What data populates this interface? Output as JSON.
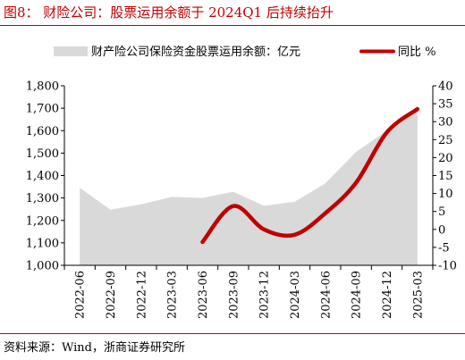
{
  "figure_title": "图8： 财险公司：股票运用余额于 2024Q1 后持续抬升",
  "source": "资料来源：Wind，浙商证券研究所",
  "colors": {
    "accent": "#c00000",
    "area": "#d9d9d9",
    "line": "#c00000"
  },
  "chart_data": {
    "type": "area",
    "categories": [
      "2022-06",
      "2022-09",
      "2022-12",
      "2023-03",
      "2023-06",
      "2023-09",
      "2023-12",
      "2024-03",
      "2024-06",
      "2024-09",
      "2024-12",
      "2025-03"
    ],
    "series": [
      {
        "name": "财产险公司保险资金股票运用余额：亿元",
        "type": "area",
        "axis": "left",
        "values": [
          1345,
          1248,
          1272,
          1305,
          1300,
          1328,
          1265,
          1283,
          1365,
          1505,
          1600,
          1710
        ]
      },
      {
        "name": "同比 %",
        "type": "line",
        "axis": "right",
        "values": [
          null,
          null,
          null,
          null,
          -3.5,
          6.5,
          0,
          -1.5,
          4.5,
          13,
          27,
          33.5
        ]
      }
    ],
    "y_left": {
      "min": 1000,
      "max": 1800,
      "ticks": [
        1000,
        1100,
        1200,
        1300,
        1400,
        1500,
        1600,
        1700,
        1800
      ],
      "tick_labels": [
        "1,000",
        "1,100",
        "1,200",
        "1,300",
        "1,400",
        "1,500",
        "1,600",
        "1,700",
        "1,800"
      ]
    },
    "y_right": {
      "min": -10,
      "max": 40,
      "ticks": [
        -10,
        -5,
        0,
        5,
        10,
        15,
        20,
        25,
        30,
        35,
        40
      ],
      "tick_labels": [
        "-10",
        "-5",
        "0",
        "5",
        "10",
        "15",
        "20",
        "25",
        "30",
        "35",
        "40"
      ]
    },
    "legend_position": "top",
    "grid": false
  }
}
